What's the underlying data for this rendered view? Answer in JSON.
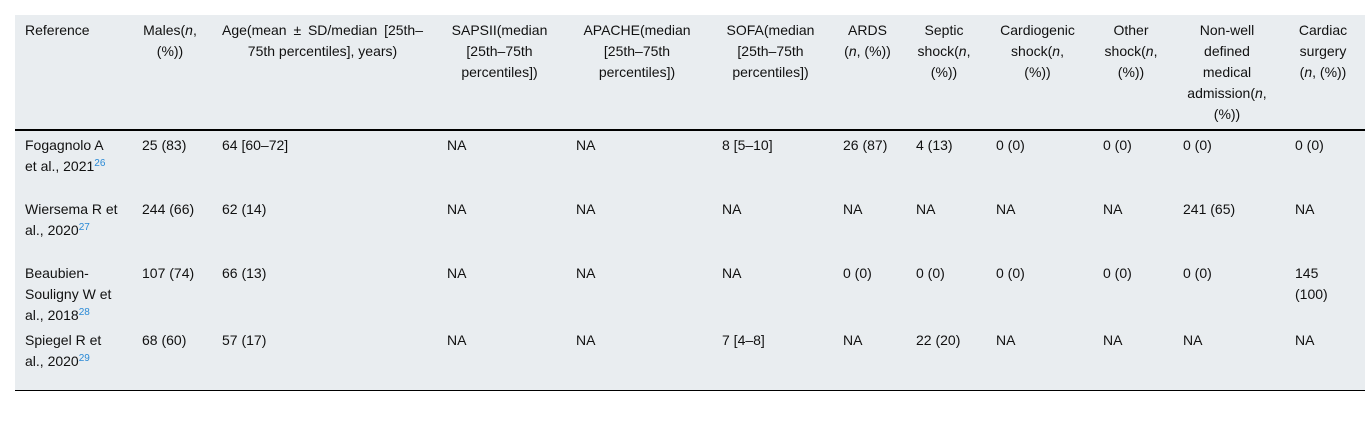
{
  "table": {
    "header": [
      [
        "Reference"
      ],
      [
        "Males(",
        "n",
        ", (%))"
      ],
      [
        "Age(mean ± SD/median [25th–75th percentiles], years)"
      ],
      [
        "SAPSII(median [25th–75th percentiles])"
      ],
      [
        "APACHE(median [25th–75th percentiles])"
      ],
      [
        "SOFA(median [25th–75th percentiles])"
      ],
      [
        "ARDS (",
        "n",
        ", (%))"
      ],
      [
        "Septic shock(",
        "n",
        ", (%))"
      ],
      [
        "Cardiogenic shock(",
        "n",
        ", (%))"
      ],
      [
        "Other shock(",
        "n",
        ", (%))"
      ],
      [
        "Non-well defined medical admission(",
        "n",
        ", (%))"
      ],
      [
        "Cardiac surgery (",
        "n",
        ", (%))"
      ]
    ],
    "rows": [
      [
        {
          "text": "Fogagnolo A et al., 2021",
          "ref": "26"
        },
        "25 (83)",
        "64 [60–72]",
        "NA",
        "NA",
        "8 [5–10]",
        "26 (87)",
        "4 (13)",
        "0 (0)",
        "0 (0)",
        "0 (0)",
        "0 (0)"
      ],
      [
        {
          "text": "Wiersema R et al., 2020",
          "ref": "27"
        },
        "244 (66)",
        "62 (14)",
        "NA",
        "NA",
        "NA",
        "NA",
        "NA",
        "NA",
        "NA",
        "241 (65)",
        "NA"
      ],
      [
        {
          "text": "Beaubien-Souligny W et al., 2018",
          "ref": "28"
        },
        "107 (74)",
        "66 (13)",
        "NA",
        "NA",
        "NA",
        "0 (0)",
        "0 (0)",
        "0 (0)",
        "0 (0)",
        "0 (0)",
        "145 (100)"
      ],
      [
        {
          "text": "Spiegel R et al., 2020",
          "ref": "29"
        },
        "68 (60)",
        "57 (17)",
        "NA",
        "NA",
        "7 [4–8]",
        "NA",
        "22 (20)",
        "NA",
        "NA",
        "NA",
        "NA"
      ]
    ]
  }
}
